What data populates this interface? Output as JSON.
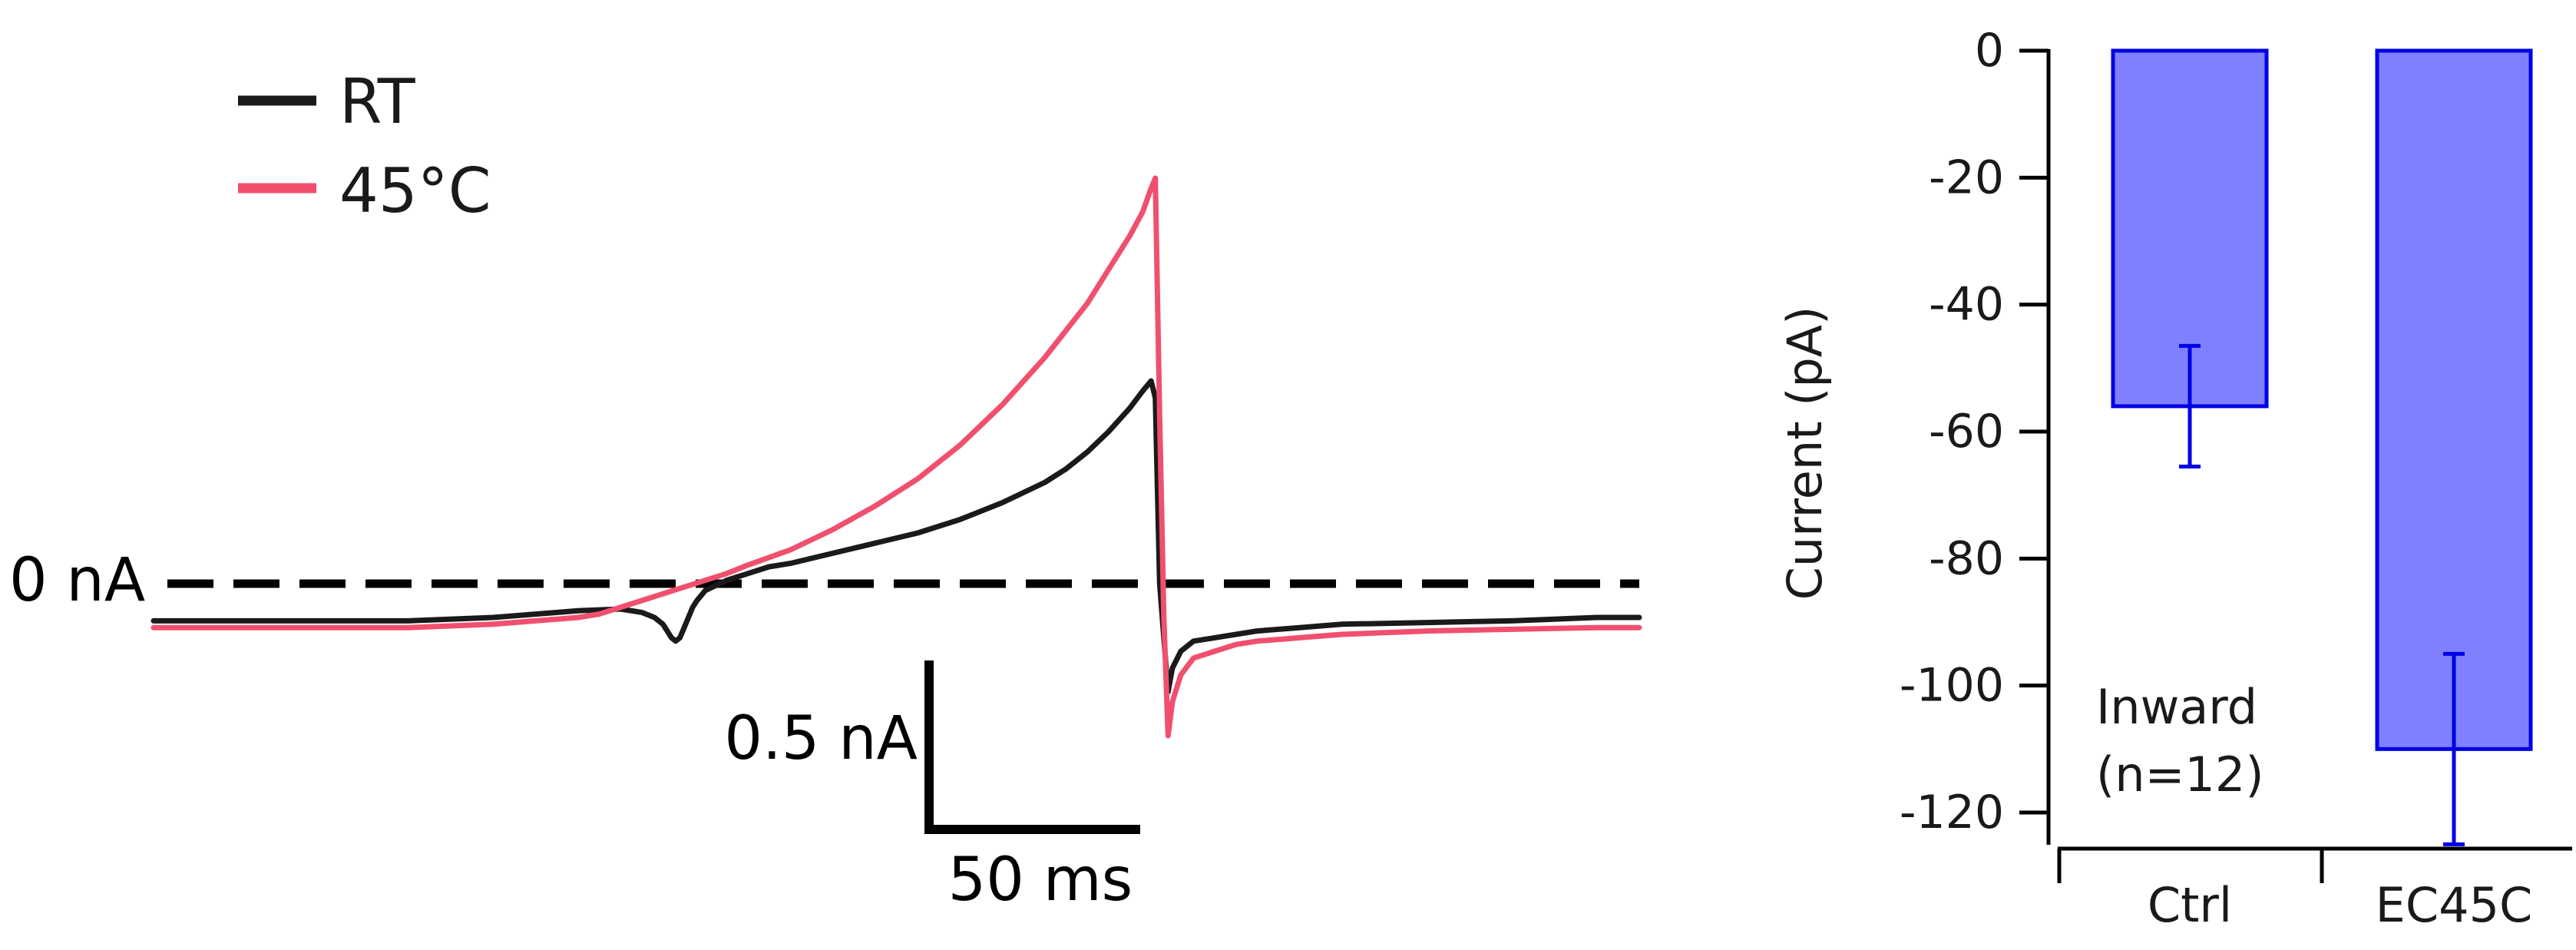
{
  "trace_panel": {
    "legend": [
      {
        "label": "RT",
        "color": "#1a1a1a"
      },
      {
        "label": "45°C",
        "color": "#f0506e"
      }
    ],
    "zero_line_label": "0 nA",
    "scale_bar": {
      "current_label": "0.5 nA",
      "time_label": "50 ms",
      "current_value_nA": 0.5,
      "time_value_ms": 50
    }
  },
  "chart_data": [
    {
      "type": "line",
      "title": "",
      "xlabel": "",
      "ylabel": "",
      "x_units": "ms",
      "y_units": "nA",
      "xlim": [
        0,
        350
      ],
      "ylim": [
        -0.5,
        1.35
      ],
      "zero_line": {
        "y": 0,
        "label": "0 nA",
        "style": "dashed"
      },
      "series": [
        {
          "name": "RT",
          "color": "#1a1a1a",
          "x": [
            0,
            20,
            40,
            60,
            80,
            100,
            110,
            115,
            118,
            120,
            122,
            123,
            124,
            125,
            126,
            127,
            128,
            130,
            135,
            140,
            145,
            150,
            155,
            160,
            170,
            180,
            190,
            200,
            210,
            215,
            220,
            225,
            230,
            233,
            235,
            236,
            237,
            239,
            240,
            242,
            245,
            250,
            255,
            260,
            270,
            280,
            300,
            320,
            340,
            350
          ],
          "y": [
            -0.11,
            -0.11,
            -0.11,
            -0.11,
            -0.1,
            -0.08,
            -0.075,
            -0.085,
            -0.1,
            -0.12,
            -0.16,
            -0.17,
            -0.16,
            -0.13,
            -0.1,
            -0.07,
            -0.05,
            -0.02,
            0.01,
            0.03,
            0.05,
            0.06,
            0.075,
            0.09,
            0.12,
            0.15,
            0.19,
            0.24,
            0.3,
            0.34,
            0.39,
            0.45,
            0.52,
            0.57,
            0.6,
            0.55,
            0.0,
            -0.32,
            -0.25,
            -0.2,
            -0.17,
            -0.16,
            -0.15,
            -0.14,
            -0.13,
            -0.12,
            -0.115,
            -0.11,
            -0.1,
            -0.1
          ]
        },
        {
          "name": "45°C",
          "color": "#f0506e",
          "x": [
            0,
            20,
            40,
            60,
            80,
            100,
            105,
            110,
            115,
            120,
            125,
            130,
            135,
            140,
            150,
            160,
            170,
            180,
            190,
            200,
            210,
            220,
            225,
            230,
            233,
            235,
            236,
            237,
            238,
            239,
            240,
            242,
            245,
            250,
            255,
            260,
            270,
            280,
            300,
            320,
            340,
            350
          ],
          "y": [
            -0.13,
            -0.13,
            -0.13,
            -0.13,
            -0.12,
            -0.1,
            -0.09,
            -0.07,
            -0.05,
            -0.03,
            -0.01,
            0.01,
            0.03,
            0.055,
            0.1,
            0.16,
            0.23,
            0.31,
            0.41,
            0.53,
            0.67,
            0.83,
            0.93,
            1.03,
            1.1,
            1.17,
            1.2,
            0.5,
            -0.1,
            -0.45,
            -0.35,
            -0.27,
            -0.22,
            -0.2,
            -0.18,
            -0.17,
            -0.16,
            -0.15,
            -0.14,
            -0.135,
            -0.13,
            -0.13
          ]
        }
      ]
    },
    {
      "type": "bar",
      "title": "",
      "xlabel": "",
      "ylabel": "Current (pA)",
      "ylim": [
        -128,
        0
      ],
      "yticks": [
        "0",
        "-20",
        "-40",
        "-60",
        "-80",
        "-100",
        "-120"
      ],
      "categories": [
        "Ctrl",
        "EC45C"
      ],
      "values": [
        -56,
        -110
      ],
      "errors": [
        9.5,
        15
      ],
      "bar_fill": "#8080ff",
      "bar_edge": "#0000e6",
      "annotation": [
        "Inward",
        "(n=12)"
      ]
    }
  ]
}
